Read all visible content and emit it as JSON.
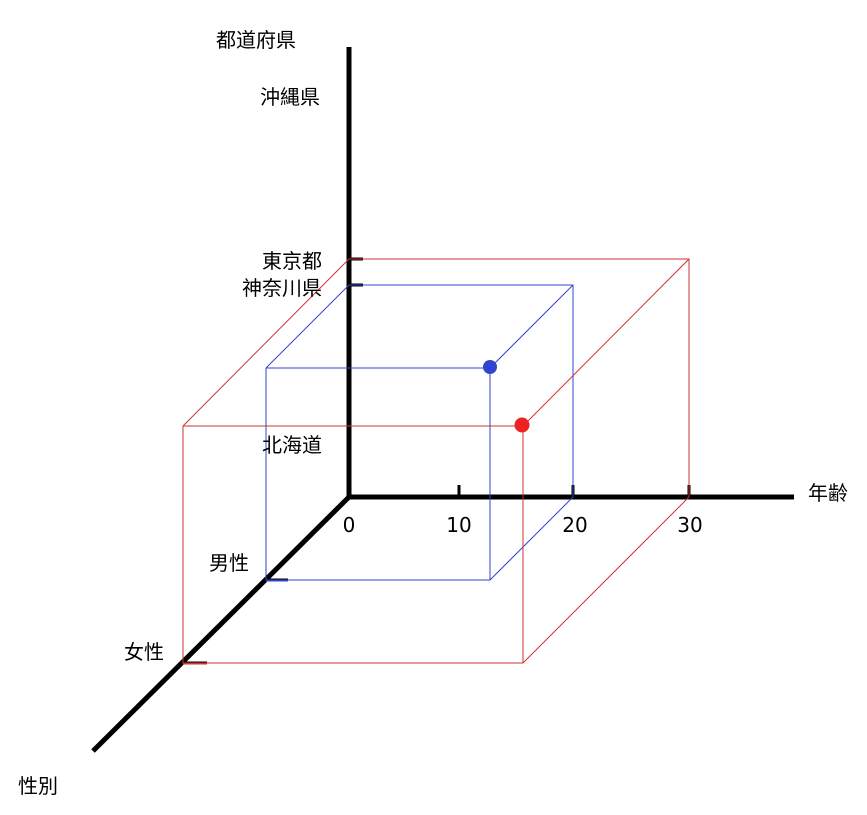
{
  "axes": {
    "prefecture_title": "都道府県",
    "age_title": "年齢",
    "sex_title": "性別"
  },
  "prefecture_ticks": [
    "沖縄県",
    "東京都",
    "神奈川県",
    "北海道"
  ],
  "age_ticks": [
    "0",
    "10",
    "20",
    "30"
  ],
  "sex_ticks": [
    "男性",
    "女性"
  ],
  "points": [
    {
      "age": 20,
      "sex": "男性",
      "prefecture": "神奈川県",
      "color": "#3344cc"
    },
    {
      "age": 30,
      "sex": "女性",
      "prefecture": "東京都",
      "color": "#ee2222"
    }
  ],
  "colors": {
    "axis": "#000000",
    "blue": "#3344cc",
    "red": "#ee2222"
  }
}
